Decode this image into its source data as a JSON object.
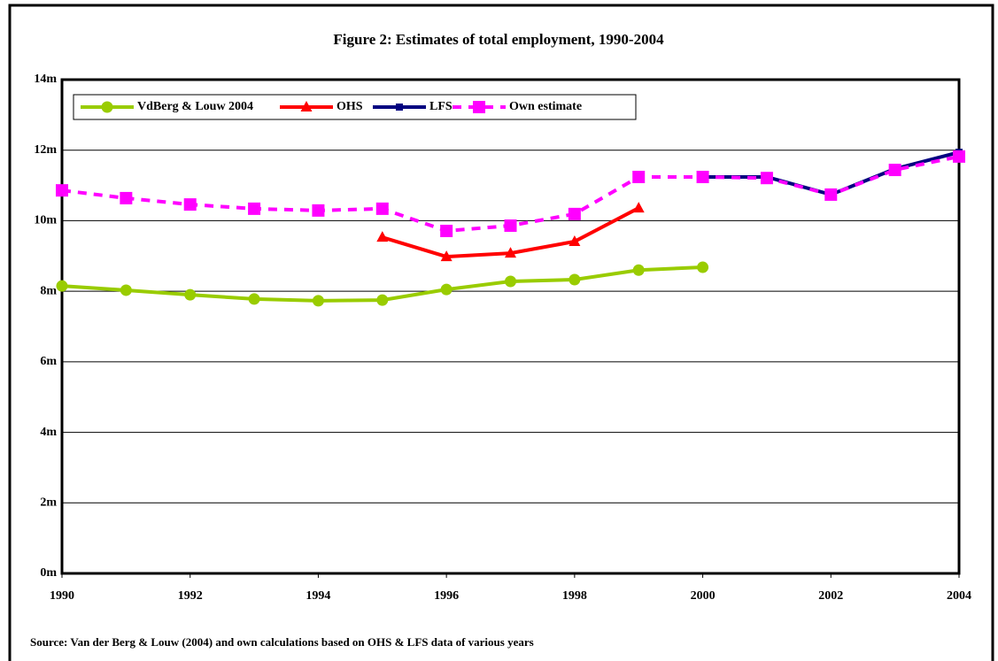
{
  "chart_data": {
    "type": "line",
    "title": "Figure 2: Estimates of total employment, 1990-2004",
    "note": "Source: Van der Berg & Louw (2004) and own calculations based on OHS & LFS data of various years",
    "x": [
      1990,
      1991,
      1992,
      1993,
      1994,
      1995,
      1996,
      1997,
      1998,
      1999,
      2000,
      2001,
      2002,
      2003,
      2004
    ],
    "series": [
      {
        "name": "VdBerg & Louw 2004",
        "color": "#99cc00",
        "marker": "circle",
        "dashed": false,
        "values": [
          8.15,
          8.03,
          7.9,
          7.78,
          7.73,
          7.75,
          8.05,
          8.28,
          8.33,
          8.6,
          8.68,
          null,
          null,
          null,
          null
        ]
      },
      {
        "name": "OHS",
        "color": "#ff0000",
        "marker": "triangle",
        "dashed": false,
        "values": [
          null,
          null,
          null,
          null,
          null,
          9.53,
          8.98,
          9.08,
          9.41,
          10.36,
          null,
          null,
          null,
          null,
          null
        ]
      },
      {
        "name": "LFS",
        "color": "#000080",
        "marker": "square",
        "dashed": false,
        "values": [
          null,
          null,
          null,
          null,
          null,
          null,
          null,
          null,
          null,
          null,
          11.24,
          11.24,
          10.74,
          11.47,
          11.94
        ]
      },
      {
        "name": "Own estimate",
        "color": "#ff00ff",
        "marker": "bigsquare",
        "dashed": true,
        "values": [
          10.86,
          10.64,
          10.46,
          10.34,
          10.29,
          10.34,
          9.71,
          9.86,
          10.19,
          11.24,
          11.24,
          11.21,
          10.74,
          11.44,
          11.82
        ]
      }
    ],
    "xlim": [
      1990,
      2004
    ],
    "xticks": [
      1990,
      1992,
      1994,
      1996,
      1998,
      2000,
      2002,
      2004
    ],
    "ylim": [
      0,
      14
    ],
    "yticks": [
      {
        "value": 0,
        "label": "0m"
      },
      {
        "value": 2,
        "label": "2m"
      },
      {
        "value": 4,
        "label": "4m"
      },
      {
        "value": 6,
        "label": "6m"
      },
      {
        "value": 8,
        "label": "8m"
      },
      {
        "value": 10,
        "label": "10m"
      },
      {
        "value": 12,
        "label": "12m"
      },
      {
        "value": 14,
        "label": "14m"
      }
    ],
    "grid": true,
    "legend": "top-left"
  }
}
